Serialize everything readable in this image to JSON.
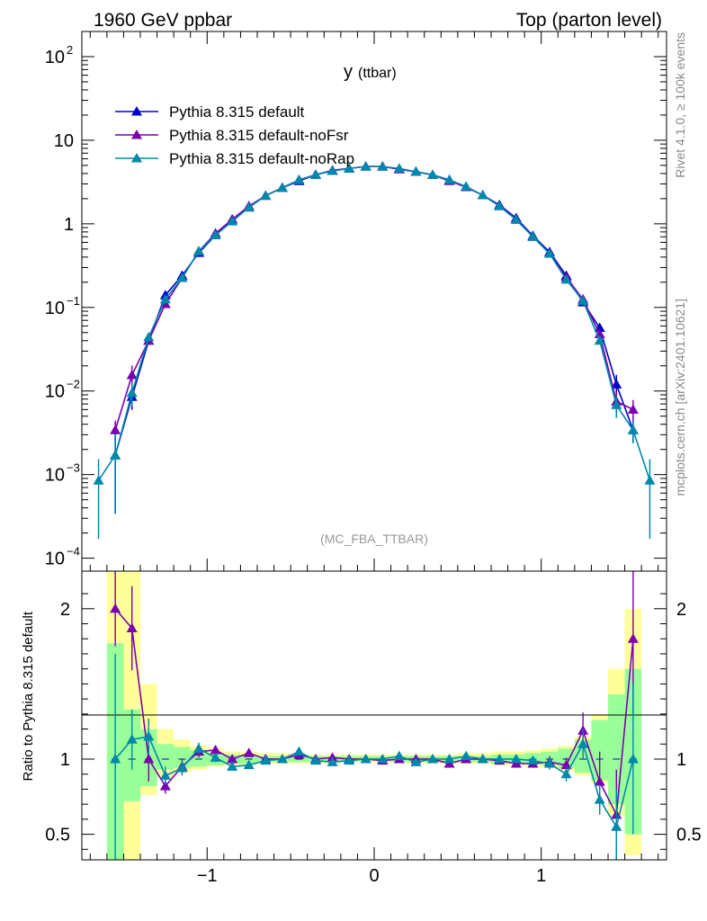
{
  "header": {
    "left": "1960 GeV ppbar",
    "right": "Top (parton level)"
  },
  "side_labels": {
    "rivet": "Rivet 4.1.0, ≥ 100k events",
    "mcplots": "mcplots.cern.ch [arXiv:2401.10621]"
  },
  "colors": {
    "default": "#0000cc",
    "noFsr": "#7a00b0",
    "noRap": "#0088aa",
    "band_yellow": "#ffff99",
    "band_green": "#99ff99"
  },
  "chart_data": [
    {
      "type": "line",
      "scale": "log",
      "title": "y",
      "title_sub": "(ttbar)",
      "watermark": "(MC_FBA_TTBAR)",
      "xlabel": "",
      "ylabel": "",
      "xlim": [
        -1.75,
        1.75
      ],
      "ylim": [
        7e-05,
        200
      ],
      "y_ticks": [
        {
          "value": 100,
          "label": "10",
          "sup": "2"
        },
        {
          "value": 10,
          "label": "10",
          "sup": ""
        },
        {
          "value": 1,
          "label": "1",
          "sup": ""
        },
        {
          "value": 0.1,
          "label": "10",
          "sup": "−1"
        },
        {
          "value": 0.01,
          "label": "10",
          "sup": "−2"
        },
        {
          "value": 0.001,
          "label": "10",
          "sup": "−3"
        },
        {
          "value": 0.0001,
          "label": "10",
          "sup": "−4"
        }
      ],
      "legend_position": "top-left",
      "series": [
        {
          "name": "Pythia 8.315 default",
          "color_key": "default",
          "x": [
            -1.55,
            -1.45,
            -1.35,
            -1.25,
            -1.15,
            -1.05,
            -0.95,
            -0.85,
            -0.75,
            -0.65,
            -0.55,
            -0.45,
            -0.35,
            -0.25,
            -0.15,
            -0.05,
            0.05,
            0.15,
            0.25,
            0.35,
            0.45,
            0.55,
            0.65,
            0.75,
            0.85,
            0.95,
            1.05,
            1.15,
            1.25,
            1.35,
            1.45,
            1.55
          ],
          "y": [
            0.0017,
            0.0085,
            0.04,
            0.14,
            0.24,
            0.45,
            0.73,
            1.13,
            1.57,
            2.17,
            2.7,
            3.25,
            3.87,
            4.3,
            4.6,
            4.85,
            4.85,
            4.5,
            4.2,
            3.85,
            3.35,
            2.75,
            2.2,
            1.68,
            1.17,
            0.72,
            0.46,
            0.24,
            0.115,
            0.057,
            0.012,
            0.0034
          ]
        },
        {
          "name": "Pythia 8.315 default-noFsr",
          "color_key": "noFsr",
          "x": [
            -1.55,
            -1.45,
            -1.35,
            -1.25,
            -1.15,
            -1.05,
            -0.95,
            -0.85,
            -0.75,
            -0.65,
            -0.55,
            -0.45,
            -0.35,
            -0.25,
            -0.15,
            -0.05,
            0.05,
            0.15,
            0.25,
            0.35,
            0.45,
            0.55,
            0.65,
            0.75,
            0.85,
            0.95,
            1.05,
            1.15,
            1.25,
            1.35,
            1.45,
            1.55
          ],
          "y": [
            0.0034,
            0.0155,
            0.04,
            0.11,
            0.225,
            0.47,
            0.77,
            1.13,
            1.63,
            2.17,
            2.7,
            3.35,
            3.87,
            4.37,
            4.6,
            4.85,
            4.85,
            4.5,
            4.2,
            3.85,
            3.25,
            2.75,
            2.2,
            1.63,
            1.12,
            0.7,
            0.44,
            0.228,
            0.125,
            0.048,
            0.0075,
            0.006
          ]
        },
        {
          "name": "Pythia 8.315 default-noRap",
          "color_key": "noRap",
          "x": [
            -1.65,
            -1.55,
            -1.45,
            -1.35,
            -1.25,
            -1.15,
            -1.05,
            -0.95,
            -0.85,
            -0.75,
            -0.65,
            -0.55,
            -0.45,
            -0.35,
            -0.25,
            -0.15,
            -0.05,
            0.05,
            0.15,
            0.25,
            0.35,
            0.45,
            0.55,
            0.65,
            0.75,
            0.85,
            0.95,
            1.05,
            1.15,
            1.25,
            1.35,
            1.45,
            1.55,
            1.65
          ],
          "y": [
            0.00085,
            0.0017,
            0.0095,
            0.044,
            0.125,
            0.225,
            0.47,
            0.73,
            1.07,
            1.57,
            2.17,
            2.7,
            3.35,
            3.87,
            4.3,
            4.6,
            4.85,
            4.85,
            4.6,
            4.2,
            3.85,
            3.35,
            2.8,
            2.2,
            1.63,
            1.12,
            0.7,
            0.44,
            0.215,
            0.12,
            0.04,
            0.0068,
            0.0034,
            0.00085
          ]
        }
      ]
    },
    {
      "type": "line",
      "scale": "linear",
      "title": "",
      "xlabel": "",
      "ylabel": "Ratio to Pythia 8.315 default",
      "xlim": [
        -1.75,
        1.75
      ],
      "ylim": [
        0.33,
        2.25
      ],
      "y_ticks": [
        0.5,
        1,
        2
      ],
      "y_tick_labels": [
        "0.5",
        "1",
        "2"
      ],
      "x_ticks": [
        -1,
        0,
        1
      ],
      "x_tick_labels": [
        "−1",
        "0",
        "1"
      ],
      "bands": {
        "edges": [
          -1.6,
          -1.5,
          -1.4,
          -1.3,
          -1.2,
          -1.1,
          -1.0,
          -0.9,
          -0.8,
          -0.7,
          -0.6,
          -0.5,
          -0.4,
          -0.3,
          -0.2,
          -0.1,
          0.0,
          0.1,
          0.2,
          0.3,
          0.4,
          0.5,
          0.6,
          0.7,
          0.8,
          0.9,
          1.0,
          1.1,
          1.2,
          1.3,
          1.4,
          1.5,
          1.6
        ],
        "yellow_lo": [
          0.2,
          0.2,
          0.76,
          0.88,
          0.91,
          0.93,
          0.95,
          0.96,
          0.96,
          0.97,
          0.97,
          0.97,
          0.97,
          0.97,
          0.98,
          0.98,
          0.98,
          0.98,
          0.97,
          0.97,
          0.97,
          0.97,
          0.97,
          0.96,
          0.96,
          0.95,
          0.94,
          0.92,
          0.89,
          0.84,
          0.62,
          0.36
        ],
        "yellow_hi": [
          2.5,
          2.5,
          1.5,
          1.2,
          1.13,
          1.09,
          1.07,
          1.05,
          1.05,
          1.04,
          1.04,
          1.03,
          1.03,
          1.03,
          1.03,
          1.03,
          1.03,
          1.03,
          1.03,
          1.03,
          1.03,
          1.04,
          1.04,
          1.05,
          1.05,
          1.06,
          1.07,
          1.09,
          1.15,
          1.3,
          1.6,
          2.0
        ],
        "green_lo": [
          0.2,
          0.72,
          0.82,
          0.93,
          0.94,
          0.95,
          0.96,
          0.97,
          0.97,
          0.98,
          0.98,
          0.98,
          0.98,
          0.98,
          0.98,
          0.99,
          0.99,
          0.98,
          0.98,
          0.98,
          0.98,
          0.98,
          0.98,
          0.97,
          0.97,
          0.97,
          0.96,
          0.94,
          0.91,
          0.86,
          0.7,
          0.5
        ],
        "green_hi": [
          1.77,
          1.33,
          1.2,
          1.1,
          1.08,
          1.06,
          1.04,
          1.03,
          1.03,
          1.02,
          1.02,
          1.02,
          1.02,
          1.02,
          1.02,
          1.02,
          1.02,
          1.02,
          1.02,
          1.02,
          1.02,
          1.02,
          1.02,
          1.03,
          1.03,
          1.04,
          1.05,
          1.07,
          1.13,
          1.26,
          1.43,
          1.6
        ]
      },
      "series": [
        {
          "name": "Pythia 8.315 default-noFsr",
          "color_key": "noFsr",
          "x": [
            -1.55,
            -1.45,
            -1.35,
            -1.25,
            -1.15,
            -1.05,
            -0.95,
            -0.85,
            -0.75,
            -0.65,
            -0.55,
            -0.45,
            -0.35,
            -0.25,
            -0.15,
            -0.05,
            0.05,
            0.15,
            0.25,
            0.35,
            0.45,
            0.55,
            0.65,
            0.75,
            0.85,
            0.95,
            1.05,
            1.15,
            1.25,
            1.35,
            1.45,
            1.55
          ],
          "y": [
            2.0,
            1.87,
            1.0,
            0.82,
            0.95,
            1.05,
            1.06,
            1.0,
            1.04,
            1.0,
            1.0,
            1.03,
            1.0,
            1.01,
            1.0,
            1.0,
            0.99,
            1.0,
            1.0,
            1.0,
            0.97,
            1.0,
            1.0,
            0.99,
            0.97,
            0.97,
            0.98,
            0.96,
            1.19,
            0.85,
            0.63,
            1.8
          ],
          "err": [
            0.25,
            0.28,
            0.15,
            0.05,
            0.05,
            0.04,
            0.03,
            0.02,
            0.02,
            0.02,
            0.01,
            0.01,
            0.01,
            0.01,
            0.01,
            0.01,
            0.01,
            0.01,
            0.01,
            0.01,
            0.01,
            0.01,
            0.02,
            0.02,
            0.02,
            0.02,
            0.04,
            0.05,
            0.12,
            0.2,
            0.3,
            0.5
          ]
        },
        {
          "name": "Pythia 8.315 default-noRap",
          "color_key": "noRap",
          "x": [
            -1.55,
            -1.45,
            -1.35,
            -1.25,
            -1.15,
            -1.05,
            -0.95,
            -0.85,
            -0.75,
            -0.65,
            -0.55,
            -0.45,
            -0.35,
            -0.25,
            -0.15,
            -0.05,
            0.05,
            0.15,
            0.25,
            0.35,
            0.45,
            0.55,
            0.65,
            0.75,
            0.85,
            0.95,
            1.05,
            1.15,
            1.25,
            1.35,
            1.45,
            1.55
          ],
          "y": [
            1.0,
            1.13,
            1.15,
            0.89,
            0.94,
            1.07,
            1.01,
            0.95,
            0.96,
            0.99,
            1.0,
            1.05,
            0.99,
            0.98,
            0.99,
            1.0,
            1.0,
            1.02,
            0.98,
            1.0,
            1.0,
            1.02,
            1.0,
            1.0,
            1.0,
            0.99,
            0.97,
            0.9,
            1.1,
            0.73,
            0.55,
            1.0
          ],
          "err": [
            0.7,
            0.2,
            0.12,
            0.06,
            0.05,
            0.04,
            0.03,
            0.02,
            0.02,
            0.02,
            0.01,
            0.01,
            0.01,
            0.01,
            0.01,
            0.01,
            0.01,
            0.01,
            0.01,
            0.01,
            0.01,
            0.01,
            0.02,
            0.02,
            0.02,
            0.02,
            0.04,
            0.05,
            0.1,
            0.1,
            0.25,
            0.5
          ]
        }
      ]
    }
  ]
}
